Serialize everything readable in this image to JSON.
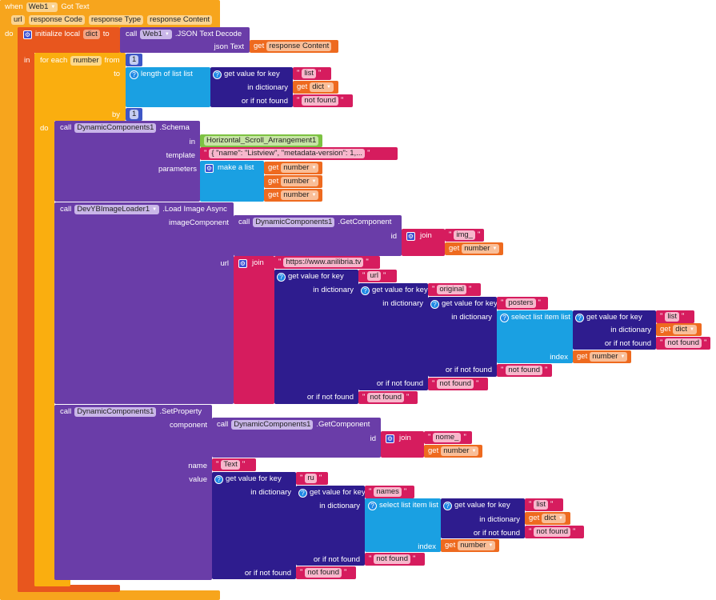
{
  "colors": {
    "event": "#F7A51D",
    "local": "#E8561E",
    "foreach": "#FAAE0F",
    "purple": "#6A3DA8",
    "list": "#1AA0E2",
    "dict": "#2E1C8E",
    "text": "#D61C5E",
    "get": "#EE6A1F",
    "number": "#3E56C6",
    "component": "#7CC242"
  },
  "event": {
    "when": "when",
    "component": "Web1",
    "name": "Got Text",
    "params": [
      "url",
      "response Code",
      "response Type",
      "response Content"
    ],
    "do": "do"
  },
  "init": {
    "label": "initialize local",
    "var": "dict",
    "to": "to",
    "in": "in"
  },
  "decode": {
    "call": "call",
    "component": "Web1",
    "method": ".JSON Text Decode",
    "arg": "json Text",
    "get": "get",
    "var": "response Content"
  },
  "foreach": {
    "label": "for each",
    "var": "number",
    "from": "from",
    "to": "to",
    "by": "by",
    "do": "do",
    "from_value": "1",
    "by_value": "1"
  },
  "common": {
    "call": "call",
    "get": "get",
    "number": "number",
    "dict": "dict",
    "get_value": "get value for key",
    "in_dictionary": "in dictionary",
    "or_if_not_found": "or if not found",
    "not_found": "not found",
    "list": "list",
    "length_of_list": "length of list  list",
    "select_list_item": "select list item  list",
    "index": "index",
    "join": "join",
    "make_a_list": "make a list",
    "id": "id",
    "dc": "DynamicComponents1",
    "get_component": ".GetComponent",
    "quote": "\""
  },
  "schema": {
    "method": ".Schema",
    "in": "in",
    "arrangement": "Horizontal_Scroll_Arrangement1",
    "template_label": "template",
    "template_value": "{   \"name\": \"Listview\",   \"metadata-version\": 1,...",
    "parameters": "parameters"
  },
  "loader": {
    "component": "DevYBImageLoader1",
    "method": ".Load Image Async",
    "image_component": "imageComponent",
    "url_label": "url",
    "img_prefix": "img_",
    "site": "https://www.anilibria.tv",
    "key_url": "url",
    "key_original": "original",
    "key_posters": "posters"
  },
  "setprop": {
    "method": ".SetProperty",
    "component_label": "component",
    "prefix": "nome_",
    "name_label": "name",
    "name_value": "Text",
    "value_label": "value",
    "key_ru": "ru",
    "key_names": "names"
  }
}
